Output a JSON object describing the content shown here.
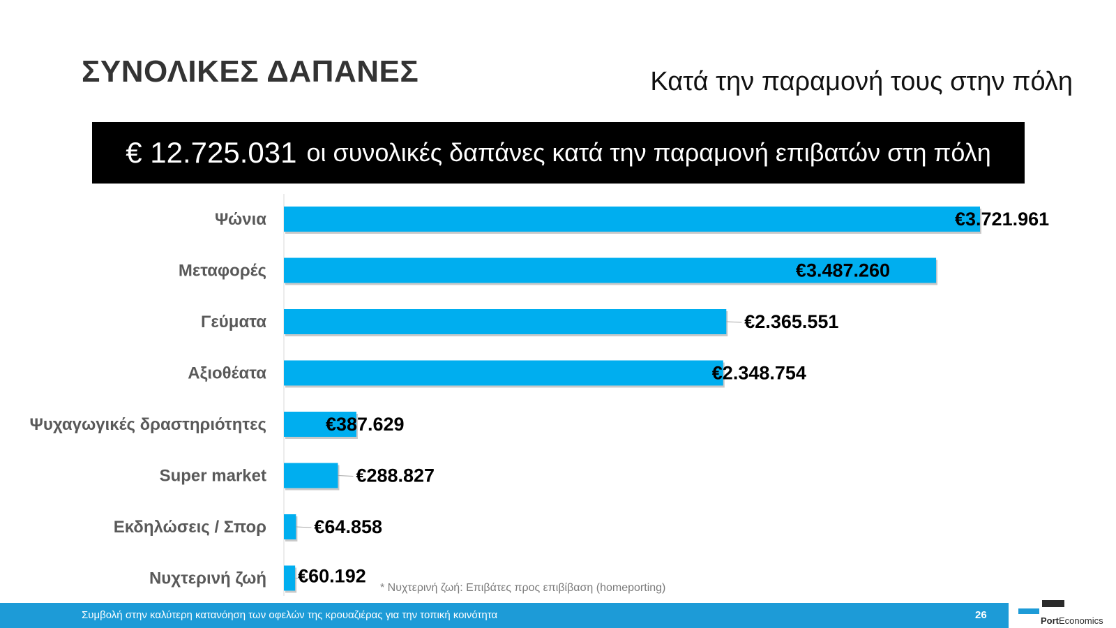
{
  "header": {
    "title": "ΣΥΝΟΛΙΚΕΣ ΔΑΠΑΝΕΣ",
    "subtitle": "Κατά την παραμονή τους στην πόλη"
  },
  "banner": {
    "amount": "€ 12.725.031",
    "text": "οι συνολικές δαπάνες κατά την παραμονή επιβατών στη πόλη"
  },
  "chart_data": {
    "type": "bar",
    "orientation": "horizontal",
    "categories": [
      "Ψώνια",
      "Μεταφορές",
      "Γεύματα",
      "Αξιοθέατα",
      "Ψυχαγωγικές δραστηριότητες",
      "Super market",
      "Εκδηλώσεις / Σπορ",
      "Νυχτερινή ζωή"
    ],
    "values": [
      3721961,
      3487260,
      2365551,
      2348754,
      387629,
      288827,
      64858,
      60192
    ],
    "data_labels": [
      "€3.721.961",
      "€3.487.260",
      "€2.365.551",
      "€2.348.754",
      "€387.629",
      "€288.827",
      "€64.858",
      "€60.192"
    ],
    "bar_color": "#00aeef",
    "label_color": "#595959",
    "grid": false
  },
  "note": "* Νυχτερινή ζωή: Επιβάτες προς επιβίβαση (homeporting)",
  "footer": {
    "text": "Συμβολή στην καλύτερη κατανόηση των οφελών της κρουαζιέρας για την τοπική κοινότητα",
    "page": "26",
    "bar_color": "#1d9bd7"
  },
  "logo": {
    "part1": "Port",
    "part2": "Economics"
  }
}
